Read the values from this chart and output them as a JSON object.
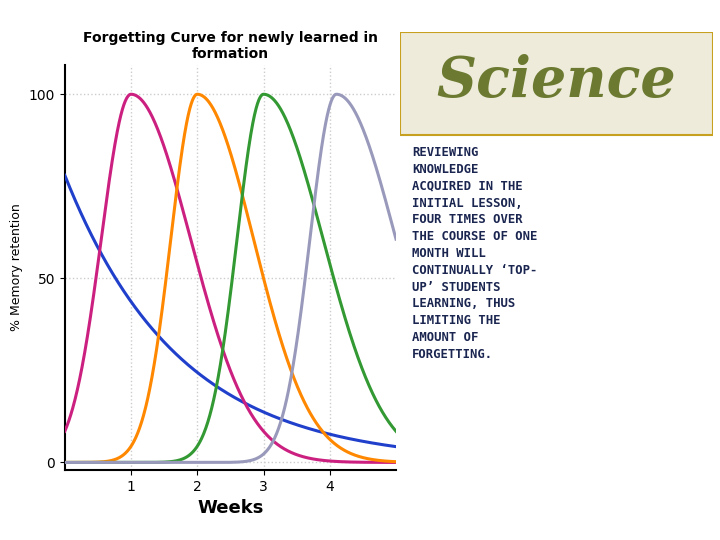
{
  "title": "Forgetting Curve for newly learned in\nformation",
  "xlabel": "Weeks",
  "ylabel": "% Memory retention",
  "yticks": [
    0,
    50,
    100
  ],
  "xticks": [
    1,
    2,
    3,
    4
  ],
  "xlim": [
    0,
    5.0
  ],
  "ylim": [
    -2,
    108
  ],
  "bg_color": "#ffffff",
  "right_panel_bg": "#eeebda",
  "right_border_color": "#c8a020",
  "science_text": "Science",
  "science_color": "#6b7a30",
  "body_text": "REVIEWING\nKNOWLEDGE\nACQUIRED IN THE\nINITIAL LESSON,\nFOUR TIMES OVER\nTHE COURSE OF ONE\nMONTH WILL\nCONTINUALLY ‘TOP-\nUP’ STUDENTS\nLEARNING, THUS\nLIMITING THE\nAMOUNT OF\nFORGETTING.",
  "body_text_color": "#1a2550",
  "bottom_bar_color1": "#e8a010",
  "bottom_bar_color2": "#b05018",
  "line_colors": [
    "#2040cc",
    "#cc2080",
    "#ff8800",
    "#339933",
    "#9999bb"
  ],
  "grid_color": "#cccccc",
  "axis_label_color": "#000000",
  "title_color": "#000000",
  "title_fontsize": 10,
  "ylabel_fontsize": 9,
  "xlabel_fontsize": 13
}
